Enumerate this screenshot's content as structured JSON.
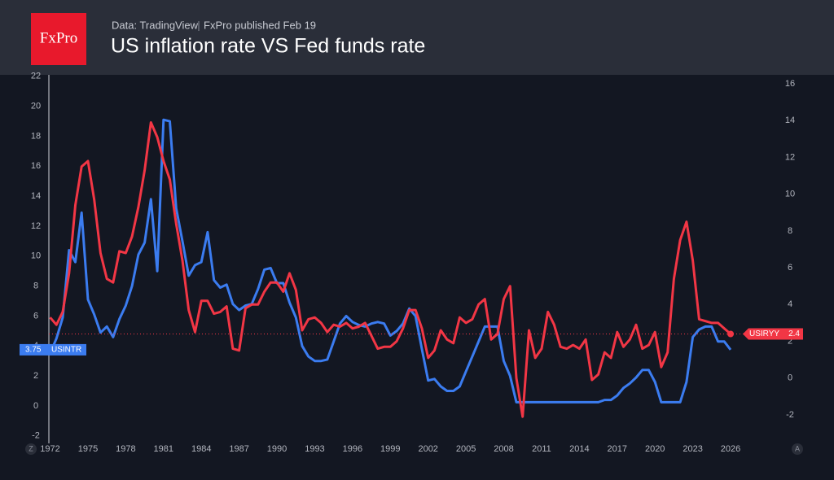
{
  "header": {
    "logo": "FxPro",
    "source": "Data: TradingView",
    "published": "FxPro published Feb 19"
  },
  "chart_data": {
    "type": "line",
    "title": "US inflation rate VS Fed funds rate",
    "x": [
      1972,
      1972.5,
      1973,
      1973.5,
      1974,
      1974.5,
      1975,
      1975.5,
      1976,
      1976.5,
      1977,
      1977.5,
      1978,
      1978.5,
      1979,
      1979.5,
      1980,
      1980.5,
      1981,
      1981.5,
      1982,
      1982.5,
      1983,
      1983.5,
      1984,
      1984.5,
      1985,
      1985.5,
      1986,
      1986.5,
      1987,
      1987.5,
      1988,
      1988.5,
      1989,
      1989.5,
      1990,
      1990.5,
      1991,
      1991.5,
      1992,
      1992.5,
      1993,
      1993.5,
      1994,
      1994.5,
      1995,
      1995.5,
      1996,
      1996.5,
      1997,
      1997.5,
      1998,
      1998.5,
      1999,
      1999.5,
      2000,
      2000.5,
      2001,
      2001.5,
      2002,
      2002.5,
      2003,
      2003.5,
      2004,
      2004.5,
      2005,
      2005.5,
      2006,
      2006.5,
      2007,
      2007.5,
      2008,
      2008.5,
      2009,
      2009.5,
      2010,
      2010.5,
      2011,
      2011.5,
      2012,
      2012.5,
      2013,
      2013.5,
      2014,
      2014.5,
      2015,
      2015.5,
      2016,
      2016.5,
      2017,
      2017.5,
      2018,
      2018.5,
      2019,
      2019.5,
      2020,
      2020.5,
      2021,
      2021.5,
      2022,
      2022.5,
      2023,
      2023.5,
      2024,
      2024.5,
      2025,
      2025.5,
      2026
    ],
    "series": [
      {
        "name": "USINTR",
        "color": "#3b7cf0",
        "axis": "y",
        "values": [
          3.5,
          4.5,
          5.9,
          10.4,
          9.6,
          12.9,
          7.1,
          6.1,
          4.9,
          5.3,
          4.6,
          5.8,
          6.7,
          8.0,
          10.1,
          10.9,
          13.8,
          9.0,
          19.1,
          19.0,
          13.2,
          11.0,
          8.7,
          9.4,
          9.6,
          11.6,
          8.4,
          7.9,
          8.1,
          6.8,
          6.4,
          6.7,
          6.8,
          7.8,
          9.1,
          9.2,
          8.2,
          8.2,
          6.9,
          5.9,
          4.0,
          3.3,
          3.0,
          3.0,
          3.1,
          4.3,
          5.5,
          6.0,
          5.6,
          5.4,
          5.3,
          5.5,
          5.6,
          5.5,
          4.7,
          5.0,
          5.5,
          6.5,
          6.0,
          3.8,
          1.7,
          1.8,
          1.3,
          1.0,
          1.0,
          1.3,
          2.3,
          3.3,
          4.3,
          5.3,
          5.3,
          5.3,
          3.0,
          2.0,
          0.25,
          0.25,
          0.25,
          0.25,
          0.25,
          0.25,
          0.25,
          0.25,
          0.25,
          0.25,
          0.25,
          0.25,
          0.25,
          0.25,
          0.4,
          0.4,
          0.7,
          1.2,
          1.5,
          1.9,
          2.4,
          2.4,
          1.6,
          0.25,
          0.25,
          0.25,
          0.25,
          1.6,
          4.6,
          5.1,
          5.3,
          5.3,
          4.3,
          4.3,
          3.75
        ]
      },
      {
        "name": "USIRYY",
        "color": "#f23645",
        "axis": "y2",
        "values": [
          3.3,
          2.9,
          3.6,
          5.7,
          9.4,
          11.5,
          11.8,
          9.7,
          6.8,
          5.4,
          5.2,
          6.9,
          6.8,
          7.7,
          9.3,
          11.3,
          13.9,
          13.1,
          11.8,
          10.8,
          8.4,
          6.4,
          3.7,
          2.5,
          4.2,
          4.2,
          3.5,
          3.6,
          3.9,
          1.6,
          1.5,
          3.8,
          4.0,
          4.0,
          4.7,
          5.2,
          5.2,
          4.7,
          5.7,
          4.8,
          2.6,
          3.2,
          3.3,
          3.0,
          2.5,
          2.9,
          2.8,
          3.0,
          2.7,
          2.8,
          3.0,
          2.3,
          1.6,
          1.7,
          1.7,
          2.0,
          2.7,
          3.7,
          3.7,
          2.7,
          1.1,
          1.5,
          2.6,
          2.1,
          1.9,
          3.3,
          3.0,
          3.2,
          4.0,
          4.3,
          2.1,
          2.4,
          4.3,
          5.0,
          0.0,
          -2.1,
          2.6,
          1.1,
          1.6,
          3.6,
          2.9,
          1.7,
          1.6,
          1.8,
          1.6,
          2.1,
          -0.1,
          0.2,
          1.4,
          1.1,
          2.5,
          1.7,
          2.1,
          2.9,
          1.6,
          1.8,
          2.5,
          0.6,
          1.4,
          5.4,
          7.5,
          8.5,
          6.4,
          3.2,
          3.1,
          3.0,
          3.0,
          2.7,
          2.4
        ]
      }
    ],
    "xlim": [
      1971.9,
      2029.1
    ],
    "xticks": [
      1972,
      1975,
      1978,
      1981,
      1984,
      1987,
      1990,
      1993,
      1996,
      1999,
      2002,
      2005,
      2008,
      2011,
      2014,
      2017,
      2020,
      2023,
      2026
    ],
    "ylim": [
      -2.5,
      22.1
    ],
    "yticks": [
      -2,
      0,
      2,
      4,
      6,
      8,
      10,
      12,
      14,
      16,
      18,
      20,
      22
    ],
    "y2lim": [
      -3.55,
      16.49
    ],
    "y2ticks": [
      -2,
      0,
      2,
      4,
      6,
      8,
      10,
      12,
      14,
      16
    ],
    "buttons": [
      "Z",
      "A"
    ],
    "grid": false
  }
}
